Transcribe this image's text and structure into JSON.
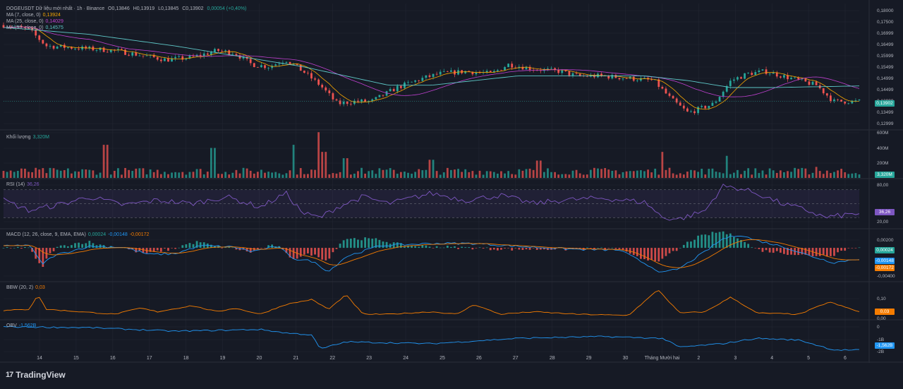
{
  "header": {
    "symbol_line": "DOGEUSDT Dữ liệu mới nhất · 1h · Binance",
    "ohlc": [
      "O0,13846",
      "H0,13919",
      "L0,13845",
      "C0,13902",
      "0,00054 (+0,40%)"
    ]
  },
  "indicators": {
    "ma7": {
      "label": "MA (7, close, 0)",
      "value": "0,13924",
      "color": "#f7a600"
    },
    "ma25": {
      "label": "MA (25, close, 0)",
      "value": "0,14029",
      "color": "#c040d0"
    },
    "ma99": {
      "label": "MA (99, close, 0)",
      "value": "0,14575",
      "color": "#5ec7c7"
    },
    "volume": {
      "label": "Khối lượng",
      "value": "3,320M"
    },
    "rsi": {
      "label": "RSI (14)",
      "value": "36,26",
      "color": "#7e57c2"
    },
    "macd": {
      "label": "MACD (12, 26, close, 9, EMA, EMA)",
      "v1": "0,00024",
      "v2": "-0,00148",
      "v3": "-0,00172"
    },
    "bbw": {
      "label": "BBW (20, 2)",
      "value": "0,03",
      "color": "#f57c00"
    },
    "obv": {
      "label": "OBV",
      "value": "-1,562B",
      "color": "#2196f3"
    }
  },
  "price_tags": {
    "price": "0,13902",
    "volume": "3,320M",
    "rsi": "36,26",
    "macd_hist": "0,00024",
    "macd_line": "-0,00148",
    "macd_signal": "-0,00172",
    "bbw": "0,03",
    "obv": "-1,562B"
  },
  "colors": {
    "up": "#26a69a",
    "down": "#ef5350",
    "bg": "#161a25",
    "grid": "#232632",
    "text": "#b2b5be"
  },
  "branding": {
    "name": "TradingView"
  },
  "chart_data": {
    "type": "candlestick",
    "title": "DOGEUSDT Dữ liệu mới nhất · 1h · Binance",
    "x_ticks": [
      "14",
      "15",
      "16",
      "17",
      "18",
      "19",
      "20",
      "21",
      "22",
      "23",
      "24",
      "25",
      "26",
      "27",
      "28",
      "29",
      "30",
      "Tháng Mười hai",
      "2",
      "3",
      "4",
      "5",
      "6"
    ],
    "panes": [
      {
        "name": "price",
        "ticks": [
          "0,18000",
          "0,17500",
          "0,16999",
          "0,16499",
          "0,15999",
          "0,15499",
          "0,14999",
          "0,14499",
          "0,13999",
          "0,13499",
          "0,12999"
        ],
        "ylim": [
          0.127,
          0.1813
        ],
        "close_anchors": [
          [
            0,
            0.172
          ],
          [
            0.03,
            0.17
          ],
          [
            0.05,
            0.163
          ],
          [
            0.09,
            0.162
          ],
          [
            0.13,
            0.161
          ],
          [
            0.16,
            0.159
          ],
          [
            0.19,
            0.157
          ],
          [
            0.22,
            0.158
          ],
          [
            0.25,
            0.161
          ],
          [
            0.27,
            0.16
          ],
          [
            0.29,
            0.155
          ],
          [
            0.31,
            0.154
          ],
          [
            0.33,
            0.157
          ],
          [
            0.35,
            0.152
          ],
          [
            0.37,
            0.146
          ],
          [
            0.39,
            0.138
          ],
          [
            0.41,
            0.139
          ],
          [
            0.43,
            0.139
          ],
          [
            0.46,
            0.145
          ],
          [
            0.49,
            0.149
          ],
          [
            0.51,
            0.151
          ],
          [
            0.54,
            0.152
          ],
          [
            0.57,
            0.151
          ],
          [
            0.59,
            0.155
          ],
          [
            0.62,
            0.153
          ],
          [
            0.65,
            0.152
          ],
          [
            0.67,
            0.15
          ],
          [
            0.7,
            0.15
          ],
          [
            0.73,
            0.149
          ],
          [
            0.76,
            0.148
          ],
          [
            0.78,
            0.14
          ],
          [
            0.8,
            0.134
          ],
          [
            0.83,
            0.138
          ],
          [
            0.85,
            0.148
          ],
          [
            0.87,
            0.151
          ],
          [
            0.89,
            0.152
          ],
          [
            0.92,
            0.149
          ],
          [
            0.95,
            0.146
          ],
          [
            0.97,
            0.139
          ],
          [
            1.0,
            0.139
          ]
        ],
        "ma99_anchors": [
          [
            0,
            0.171
          ],
          [
            0.1,
            0.168
          ],
          [
            0.2,
            0.163
          ],
          [
            0.3,
            0.157
          ],
          [
            0.35,
            0.154
          ],
          [
            0.4,
            0.15
          ],
          [
            0.45,
            0.146
          ],
          [
            0.5,
            0.146
          ],
          [
            0.6,
            0.15
          ],
          [
            0.7,
            0.15
          ],
          [
            0.75,
            0.15
          ],
          [
            0.8,
            0.148
          ],
          [
            0.85,
            0.145
          ],
          [
            0.9,
            0.145
          ],
          [
            1.0,
            0.1457
          ]
        ]
      },
      {
        "name": "volume",
        "ticks": [
          "600M",
          "400M",
          "200M"
        ],
        "ylim": [
          0,
          600
        ],
        "spikes": [
          [
            0.12,
            420
          ],
          [
            0.245,
            380
          ],
          [
            0.34,
            420
          ],
          [
            0.37,
            580
          ],
          [
            0.375,
            330
          ],
          [
            0.4,
            250
          ],
          [
            0.5,
            230
          ],
          [
            0.625,
            220
          ],
          [
            0.77,
            330
          ],
          [
            0.845,
            280
          ],
          [
            0.95,
            140
          ]
        ]
      },
      {
        "name": "rsi",
        "ticks": [
          "80,00",
          "36,26",
          "20,00"
        ],
        "ylim": [
          15,
          85
        ],
        "bands": [
          30,
          50,
          70
        ],
        "anchors": [
          [
            0,
            55
          ],
          [
            0.03,
            40
          ],
          [
            0.07,
            50
          ],
          [
            0.1,
            60
          ],
          [
            0.14,
            48
          ],
          [
            0.18,
            55
          ],
          [
            0.22,
            50
          ],
          [
            0.26,
            60
          ],
          [
            0.3,
            45
          ],
          [
            0.33,
            65
          ],
          [
            0.35,
            36
          ],
          [
            0.37,
            30
          ],
          [
            0.39,
            45
          ],
          [
            0.42,
            60
          ],
          [
            0.45,
            50
          ],
          [
            0.5,
            65
          ],
          [
            0.54,
            55
          ],
          [
            0.58,
            62
          ],
          [
            0.62,
            50
          ],
          [
            0.65,
            55
          ],
          [
            0.7,
            58
          ],
          [
            0.75,
            52
          ],
          [
            0.77,
            30
          ],
          [
            0.79,
            28
          ],
          [
            0.82,
            40
          ],
          [
            0.84,
            75
          ],
          [
            0.86,
            72
          ],
          [
            0.88,
            65
          ],
          [
            0.91,
            50
          ],
          [
            0.94,
            40
          ],
          [
            0.96,
            30
          ],
          [
            1.0,
            36.26
          ]
        ]
      },
      {
        "name": "macd",
        "ticks": [
          "0,00200",
          "-0,00400"
        ],
        "ylim": [
          -0.0045,
          0.0025
        ],
        "anchors": [
          [
            0,
            0.0002
          ],
          [
            0.03,
            0.0004
          ],
          [
            0.045,
            -0.0022
          ],
          [
            0.06,
            -0.001
          ],
          [
            0.1,
            0.0002
          ],
          [
            0.14,
            0.0001
          ],
          [
            0.17,
            -0.0009
          ],
          [
            0.2,
            -0.0008
          ],
          [
            0.23,
            0.0003
          ],
          [
            0.27,
            0.0001
          ],
          [
            0.29,
            -0.0005
          ],
          [
            0.32,
            0.0002
          ],
          [
            0.34,
            -0.0015
          ],
          [
            0.36,
            -0.0018
          ],
          [
            0.38,
            -0.0032
          ],
          [
            0.4,
            -0.0012
          ],
          [
            0.44,
            0.0003
          ],
          [
            0.5,
            0.0006
          ],
          [
            0.55,
            0.0006
          ],
          [
            0.6,
            0.0002
          ],
          [
            0.67,
            -0.0002
          ],
          [
            0.72,
            -0.0003
          ],
          [
            0.77,
            -0.0034
          ],
          [
            0.79,
            -0.0028
          ],
          [
            0.82,
            -0.0005
          ],
          [
            0.84,
            0.0012
          ],
          [
            0.86,
            0.0018
          ],
          [
            0.88,
            0.001
          ],
          [
            0.91,
            0.0002
          ],
          [
            0.94,
            -0.001
          ],
          [
            0.97,
            -0.002
          ],
          [
            1.0,
            -0.00148
          ]
        ]
      },
      {
        "name": "bbw",
        "ticks": [
          "0,10",
          "0,03",
          "0,00"
        ],
        "ylim": [
          0,
          0.15
        ],
        "anchors": [
          [
            0,
            0.035
          ],
          [
            0.03,
            0.04
          ],
          [
            0.04,
            0.1
          ],
          [
            0.05,
            0.04
          ],
          [
            0.09,
            0.03
          ],
          [
            0.13,
            0.02
          ],
          [
            0.16,
            0.045
          ],
          [
            0.18,
            0.03
          ],
          [
            0.22,
            0.055
          ],
          [
            0.25,
            0.03
          ],
          [
            0.27,
            0.045
          ],
          [
            0.3,
            0.02
          ],
          [
            0.33,
            0.06
          ],
          [
            0.36,
            0.08
          ],
          [
            0.38,
            0.04
          ],
          [
            0.4,
            0.1
          ],
          [
            0.42,
            0.02
          ],
          [
            0.45,
            0.02
          ],
          [
            0.5,
            0.03
          ],
          [
            0.53,
            0.02
          ],
          [
            0.55,
            0.06
          ],
          [
            0.58,
            0.02
          ],
          [
            0.62,
            0.03
          ],
          [
            0.67,
            0.02
          ],
          [
            0.73,
            0.015
          ],
          [
            0.765,
            0.12
          ],
          [
            0.79,
            0.025
          ],
          [
            0.82,
            0.03
          ],
          [
            0.85,
            0.09
          ],
          [
            0.88,
            0.025
          ],
          [
            0.93,
            0.02
          ],
          [
            0.965,
            0.07
          ],
          [
            1.0,
            0.03
          ]
        ]
      },
      {
        "name": "obv",
        "ticks": [
          "0",
          "-1B",
          "-2B"
        ],
        "ylim": [
          -2.2,
          0.1
        ],
        "anchors": [
          [
            0,
            -0.25
          ],
          [
            0.1,
            -0.3
          ],
          [
            0.2,
            -0.5
          ],
          [
            0.3,
            -0.4
          ],
          [
            0.33,
            -0.6
          ],
          [
            0.36,
            -0.7
          ],
          [
            0.37,
            -1.5
          ],
          [
            0.4,
            -1.1
          ],
          [
            0.5,
            -1.2
          ],
          [
            0.6,
            -0.9
          ],
          [
            0.7,
            -0.8
          ],
          [
            0.77,
            -0.9
          ],
          [
            0.79,
            -1.4
          ],
          [
            0.84,
            -1.2
          ],
          [
            0.88,
            -0.9
          ],
          [
            0.93,
            -1.0
          ],
          [
            0.97,
            -1.55
          ],
          [
            1.0,
            -1.562
          ]
        ]
      }
    ]
  }
}
